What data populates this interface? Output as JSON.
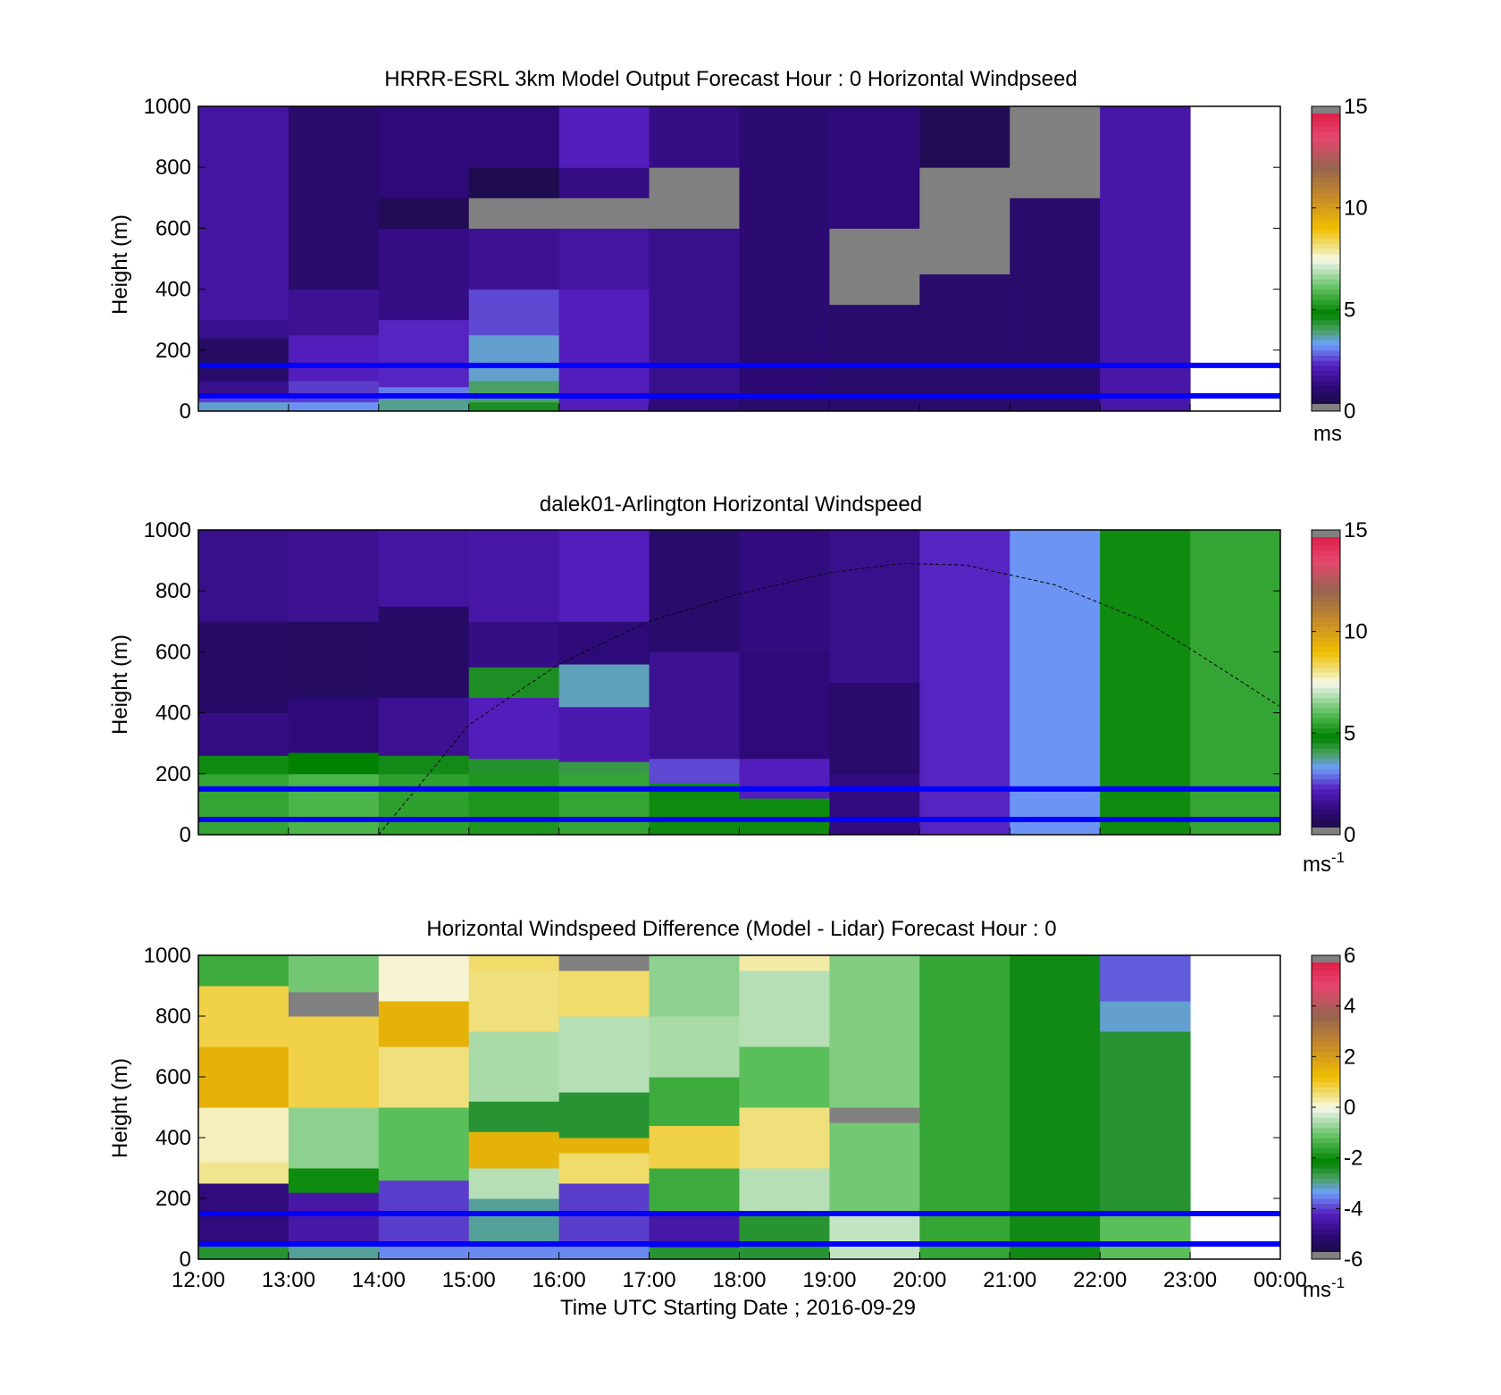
{
  "x_axis": {
    "label": "Time UTC  Starting Date ; 2016-09-29",
    "ticks": [
      "12:00",
      "13:00",
      "14:00",
      "15:00",
      "16:00",
      "17:00",
      "18:00",
      "19:00",
      "20:00",
      "21:00",
      "22:00",
      "23:00",
      "00:00"
    ]
  },
  "chart_data": [
    {
      "type": "heatmap",
      "title": "HRRR-ESRL 3km Model Output   Forecast Hour : 0 Horizontal Windpseed",
      "ylabel": "Height (m)",
      "x": [
        "12:00",
        "13:00",
        "14:00",
        "15:00",
        "16:00",
        "17:00",
        "18:00",
        "19:00",
        "20:00",
        "21:00",
        "22:00",
        "23:00"
      ],
      "ylim": [
        0,
        1000
      ],
      "yticks": [
        "0",
        "200",
        "400",
        "600",
        "800",
        "1000"
      ],
      "colorbar": {
        "ticks": [
          "0",
          "5",
          "10",
          "15"
        ],
        "range": [
          0,
          15
        ],
        "unit": "ms"
      },
      "reference_lines_m": [
        50,
        150
      ],
      "columns": [
        {
          "t": "12:00",
          "profile": [
            [
              0,
              30,
              3.5
            ],
            [
              30,
              60,
              2.5
            ],
            [
              60,
              100,
              1.5
            ],
            [
              100,
              150,
              1
            ],
            [
              150,
              160,
              6
            ],
            [
              160,
              240,
              0.8
            ],
            [
              240,
              300,
              1.5
            ],
            [
              300,
              1000,
              1.8
            ]
          ]
        },
        {
          "t": "13:00",
          "profile": [
            [
              0,
              30,
              3.2
            ],
            [
              30,
              100,
              2.5
            ],
            [
              100,
              250,
              2.2
            ],
            [
              250,
              400,
              1.6
            ],
            [
              400,
              1000,
              1.0
            ]
          ]
        },
        {
          "t": "14:00",
          "profile": [
            [
              0,
              40,
              3.8
            ],
            [
              40,
              80,
              3
            ],
            [
              80,
              300,
              2.3
            ],
            [
              300,
              600,
              1.4
            ],
            [
              600,
              700,
              0.6
            ],
            [
              700,
              1000,
              1.2
            ]
          ]
        },
        {
          "t": "15:00",
          "profile": [
            [
              0,
              30,
              4.5
            ],
            [
              30,
              100,
              4
            ],
            [
              100,
              250,
              3.5
            ],
            [
              250,
              400,
              2.6
            ],
            [
              400,
              600,
              1.6
            ],
            [
              600,
              700,
              null
            ],
            [
              700,
              800,
              0.5
            ],
            [
              800,
              1000,
              1.2
            ]
          ]
        },
        {
          "t": "16:00",
          "profile": [
            [
              0,
              50,
              2.2
            ],
            [
              50,
              400,
              2.2
            ],
            [
              400,
              600,
              1.8
            ],
            [
              600,
              700,
              null
            ],
            [
              700,
              800,
              1.4
            ],
            [
              800,
              1000,
              2.2
            ]
          ]
        },
        {
          "t": "17:00",
          "profile": [
            [
              0,
              50,
              1.2
            ],
            [
              50,
              600,
              1.5
            ],
            [
              600,
              800,
              null
            ],
            [
              800,
              1000,
              1.4
            ]
          ]
        },
        {
          "t": "18:00",
          "profile": [
            [
              0,
              50,
              1.0
            ],
            [
              50,
              1000,
              1.1
            ]
          ]
        },
        {
          "t": "19:00",
          "profile": [
            [
              0,
              350,
              1.0
            ],
            [
              350,
              600,
              null
            ],
            [
              600,
              1000,
              1.2
            ]
          ]
        },
        {
          "t": "20:00",
          "profile": [
            [
              0,
              450,
              1.0
            ],
            [
              450,
              800,
              null
            ],
            [
              800,
              1000,
              0.6
            ]
          ]
        },
        {
          "t": "21:00",
          "profile": [
            [
              0,
              700,
              1.0
            ],
            [
              700,
              1000,
              null
            ]
          ]
        },
        {
          "t": "22:00",
          "profile": [
            [
              0,
              1000,
              1.9
            ]
          ]
        }
      ]
    },
    {
      "type": "heatmap",
      "title": "dalek01-Arlington  Horizontal Windspeed",
      "ylabel": "Height (m)",
      "x": [
        "12:00",
        "13:00",
        "14:00",
        "15:00",
        "16:00",
        "17:00",
        "18:00",
        "19:00",
        "20:00",
        "21:00",
        "22:00",
        "23:00"
      ],
      "ylim": [
        0,
        1000
      ],
      "yticks": [
        "0",
        "200",
        "400",
        "600",
        "800",
        "1000"
      ],
      "colorbar": {
        "ticks": [
          "0",
          "5",
          "10",
          "15"
        ],
        "range": [
          0,
          15
        ],
        "unit": "ms",
        "unit_exp": "-1"
      },
      "reference_lines_m": [
        50,
        150
      ],
      "boundary_layer_curve": [
        [
          14.0,
          0
        ],
        [
          15.0,
          360
        ],
        [
          16.0,
          560
        ],
        [
          17.0,
          700
        ],
        [
          18.0,
          790
        ],
        [
          19.0,
          860
        ],
        [
          19.8,
          890
        ],
        [
          20.5,
          885
        ],
        [
          21.5,
          820
        ],
        [
          22.5,
          700
        ],
        [
          23.0,
          610
        ],
        [
          24.0,
          420
        ]
      ],
      "columns": [
        {
          "t": "12:00",
          "profile": [
            [
              0,
              200,
              5.5
            ],
            [
              200,
              260,
              5
            ],
            [
              260,
              400,
              1.4
            ],
            [
              400,
              700,
              0.9
            ],
            [
              700,
              1000,
              1.5
            ]
          ]
        },
        {
          "t": "13:00",
          "profile": [
            [
              0,
              200,
              5.8
            ],
            [
              200,
              270,
              4.8
            ],
            [
              270,
              450,
              1.2
            ],
            [
              450,
              700,
              0.8
            ],
            [
              700,
              1000,
              1.6
            ]
          ]
        },
        {
          "t": "14:00",
          "profile": [
            [
              0,
              200,
              5.4
            ],
            [
              200,
              260,
              4.6
            ],
            [
              260,
              450,
              1.6
            ],
            [
              450,
              750,
              0.9
            ],
            [
              750,
              1000,
              1.8
            ]
          ]
        },
        {
          "t": "15:00",
          "profile": [
            [
              0,
              200,
              5.2
            ],
            [
              200,
              250,
              4.4
            ],
            [
              250,
              450,
              2.2
            ],
            [
              450,
              550,
              4.5
            ],
            [
              550,
              700,
              1.4
            ],
            [
              700,
              1000,
              1.9
            ]
          ]
        },
        {
          "t": "16:00",
          "profile": [
            [
              0,
              200,
              5.5
            ],
            [
              200,
              240,
              4.2
            ],
            [
              240,
              420,
              2.0
            ],
            [
              420,
              560,
              3.6
            ],
            [
              560,
              700,
              1.2
            ],
            [
              700,
              1000,
              2.2
            ]
          ]
        },
        {
          "t": "17:00",
          "profile": [
            [
              0,
              170,
              5.0
            ],
            [
              170,
              250,
              2.6
            ],
            [
              250,
              600,
              1.6
            ],
            [
              600,
              1000,
              1.0
            ]
          ]
        },
        {
          "t": "18:00",
          "profile": [
            [
              0,
              120,
              5.0
            ],
            [
              120,
              250,
              2.2
            ],
            [
              250,
              600,
              1.2
            ],
            [
              600,
              1000,
              1.3
            ]
          ]
        },
        {
          "t": "19:00",
          "profile": [
            [
              0,
              200,
              1.3
            ],
            [
              200,
              500,
              1.0
            ],
            [
              500,
              1000,
              1.5
            ]
          ]
        },
        {
          "t": "20:00",
          "profile": [
            [
              0,
              1000,
              2.3
            ]
          ]
        },
        {
          "t": "21:00",
          "profile": [
            [
              0,
              1000,
              3.2
            ]
          ]
        },
        {
          "t": "22:00",
          "profile": [
            [
              0,
              1000,
              5.0
            ]
          ]
        },
        {
          "t": "23:00",
          "profile": [
            [
              0,
              1000,
              5.5
            ]
          ]
        }
      ]
    },
    {
      "type": "heatmap",
      "title": "Horizontal Windspeed Difference (Model - Lidar) Forecast Hour : 0",
      "ylabel": "Height (m)",
      "x": [
        "12:00",
        "13:00",
        "14:00",
        "15:00",
        "16:00",
        "17:00",
        "18:00",
        "19:00",
        "20:00",
        "21:00",
        "22:00",
        "23:00"
      ],
      "ylim": [
        0,
        1000
      ],
      "yticks": [
        "0",
        "200",
        "400",
        "600",
        "800",
        "1000"
      ],
      "colorbar": {
        "ticks": [
          "-6",
          "-4",
          "-2",
          "0",
          "2",
          "4",
          "6"
        ],
        "range": [
          -6,
          6
        ],
        "unit": "ms",
        "unit_exp": "-1"
      },
      "reference_lines_m": [
        50,
        150
      ],
      "columns": [
        {
          "t": "12:00",
          "profile": [
            [
              0,
              60,
              -2.5
            ],
            [
              60,
              250,
              -5
            ],
            [
              250,
              320,
              0.4
            ],
            [
              320,
              500,
              0.2
            ],
            [
              500,
              700,
              1.5
            ],
            [
              700,
              900,
              0.8
            ],
            [
              900,
              1000,
              -1.5
            ]
          ]
        },
        {
          "t": "13:00",
          "profile": [
            [
              0,
              60,
              -3
            ],
            [
              60,
              220,
              -4.5
            ],
            [
              220,
              300,
              -2
            ],
            [
              300,
              500,
              -0.8
            ],
            [
              500,
              800,
              0.8
            ],
            [
              800,
              880,
              null
            ],
            [
              880,
              1000,
              -1.0
            ]
          ]
        },
        {
          "t": "14:00",
          "profile": [
            [
              0,
              60,
              -3.5
            ],
            [
              60,
              260,
              -4
            ],
            [
              260,
              500,
              -1.2
            ],
            [
              500,
              700,
              0.5
            ],
            [
              700,
              850,
              1.5
            ],
            [
              850,
              1000,
              0.1
            ]
          ]
        },
        {
          "t": "15:00",
          "profile": [
            [
              0,
              60,
              -3.5
            ],
            [
              60,
              200,
              -3
            ],
            [
              200,
              300,
              -0.5
            ],
            [
              300,
              420,
              1.5
            ],
            [
              420,
              520,
              -2.5
            ],
            [
              520,
              750,
              -0.6
            ],
            [
              750,
              950,
              0.5
            ],
            [
              950,
              1000,
              0.6
            ]
          ]
        },
        {
          "t": "16:00",
          "profile": [
            [
              0,
              60,
              -3.5
            ],
            [
              60,
              250,
              -4
            ],
            [
              250,
              350,
              0.6
            ],
            [
              350,
              400,
              1.5
            ],
            [
              400,
              550,
              -2.5
            ],
            [
              550,
              800,
              -0.5
            ],
            [
              800,
              950,
              0.6
            ],
            [
              950,
              1000,
              null
            ]
          ]
        },
        {
          "t": "17:00",
          "profile": [
            [
              0,
              40,
              -2.5
            ],
            [
              40,
              150,
              -4.5
            ],
            [
              150,
              300,
              -1.5
            ],
            [
              300,
              440,
              0.8
            ],
            [
              440,
              600,
              -1.5
            ],
            [
              600,
              800,
              -0.6
            ],
            [
              800,
              1000,
              -0.8
            ]
          ]
        },
        {
          "t": "18:00",
          "profile": [
            [
              0,
              150,
              -2.5
            ],
            [
              150,
              300,
              -0.5
            ],
            [
              300,
              500,
              0.5
            ],
            [
              500,
              700,
              -1.2
            ],
            [
              700,
              950,
              -0.5
            ],
            [
              950,
              1000,
              0.3
            ]
          ]
        },
        {
          "t": "19:00",
          "profile": [
            [
              0,
              150,
              -0.4
            ],
            [
              150,
              450,
              -1.0
            ],
            [
              450,
              500,
              null
            ],
            [
              500,
              1000,
              -0.9
            ]
          ]
        },
        {
          "t": "20:00",
          "profile": [
            [
              0,
              1000,
              -1.6
            ]
          ]
        },
        {
          "t": "21:00",
          "profile": [
            [
              0,
              1000,
              -2.3
            ]
          ]
        },
        {
          "t": "22:00",
          "profile": [
            [
              0,
              150,
              -1.2
            ],
            [
              150,
              750,
              -2.5
            ],
            [
              750,
              850,
              -3.2
            ],
            [
              850,
              1000,
              -3.8
            ]
          ]
        }
      ]
    }
  ]
}
